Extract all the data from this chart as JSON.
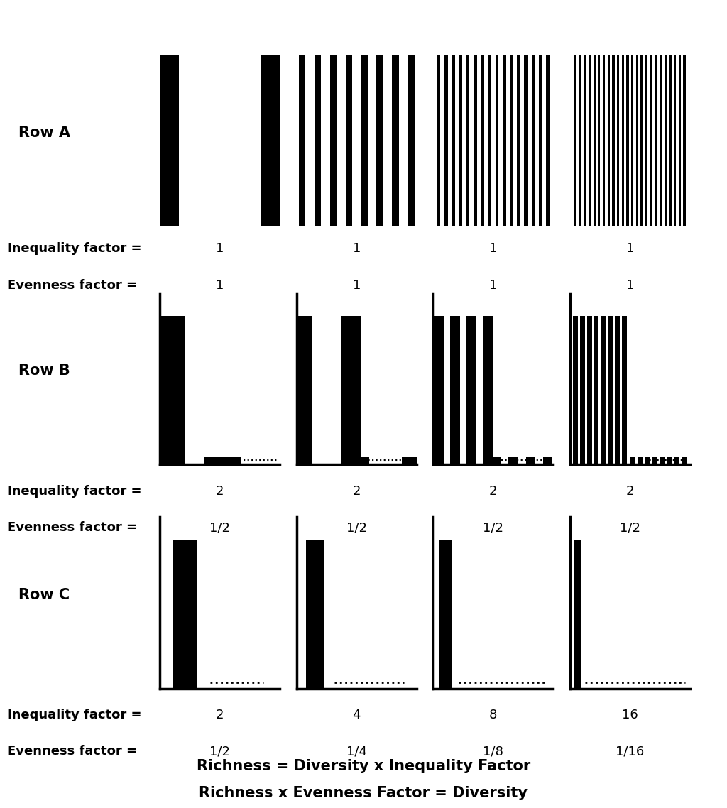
{
  "rows": [
    {
      "label": "Row A",
      "panels": [
        {
          "tall_n": 2,
          "small_n": 0,
          "inequality": "1",
          "evenness": "1",
          "row_type": "A"
        },
        {
          "tall_n": 8,
          "small_n": 0,
          "inequality": "1",
          "evenness": "1",
          "row_type": "A"
        },
        {
          "tall_n": 16,
          "small_n": 0,
          "inequality": "1",
          "evenness": "1",
          "row_type": "A"
        },
        {
          "tall_n": 24,
          "small_n": 0,
          "inequality": "1",
          "evenness": "1",
          "row_type": "A"
        }
      ]
    },
    {
      "label": "Row B",
      "panels": [
        {
          "tall_n": 1,
          "small_n": 1,
          "inequality": "2",
          "evenness": "1/2",
          "row_type": "B"
        },
        {
          "tall_n": 2,
          "small_n": 2,
          "inequality": "2",
          "evenness": "1/2",
          "row_type": "B"
        },
        {
          "tall_n": 4,
          "small_n": 4,
          "inequality": "2",
          "evenness": "1/2",
          "row_type": "B"
        },
        {
          "tall_n": 8,
          "small_n": 8,
          "inequality": "2",
          "evenness": "1/2",
          "row_type": "B"
        }
      ]
    },
    {
      "label": "Row C",
      "panels": [
        {
          "tall_n": 1,
          "small_n": 1,
          "inequality": "2",
          "evenness": "1/2",
          "row_type": "C"
        },
        {
          "tall_n": 1,
          "small_n": 3,
          "inequality": "4",
          "evenness": "1/4",
          "row_type": "C"
        },
        {
          "tall_n": 1,
          "small_n": 7,
          "inequality": "8",
          "evenness": "1/8",
          "row_type": "C"
        },
        {
          "tall_n": 1,
          "small_n": 15,
          "inequality": "16",
          "evenness": "1/16",
          "row_type": "C"
        }
      ]
    }
  ],
  "footer_line1": "Richness = Diversity x Inequality Factor",
  "footer_line2": "Richness x Evenness Factor = Diversity",
  "bg_color": "#ffffff",
  "bar_color": "#000000",
  "spine_lw": 2.5,
  "label_fontsize": 13,
  "row_label_fontsize": 15,
  "footer_fontsize": 15,
  "ineq_label": "Inequality factor =",
  "even_label": "Evenness factor ="
}
